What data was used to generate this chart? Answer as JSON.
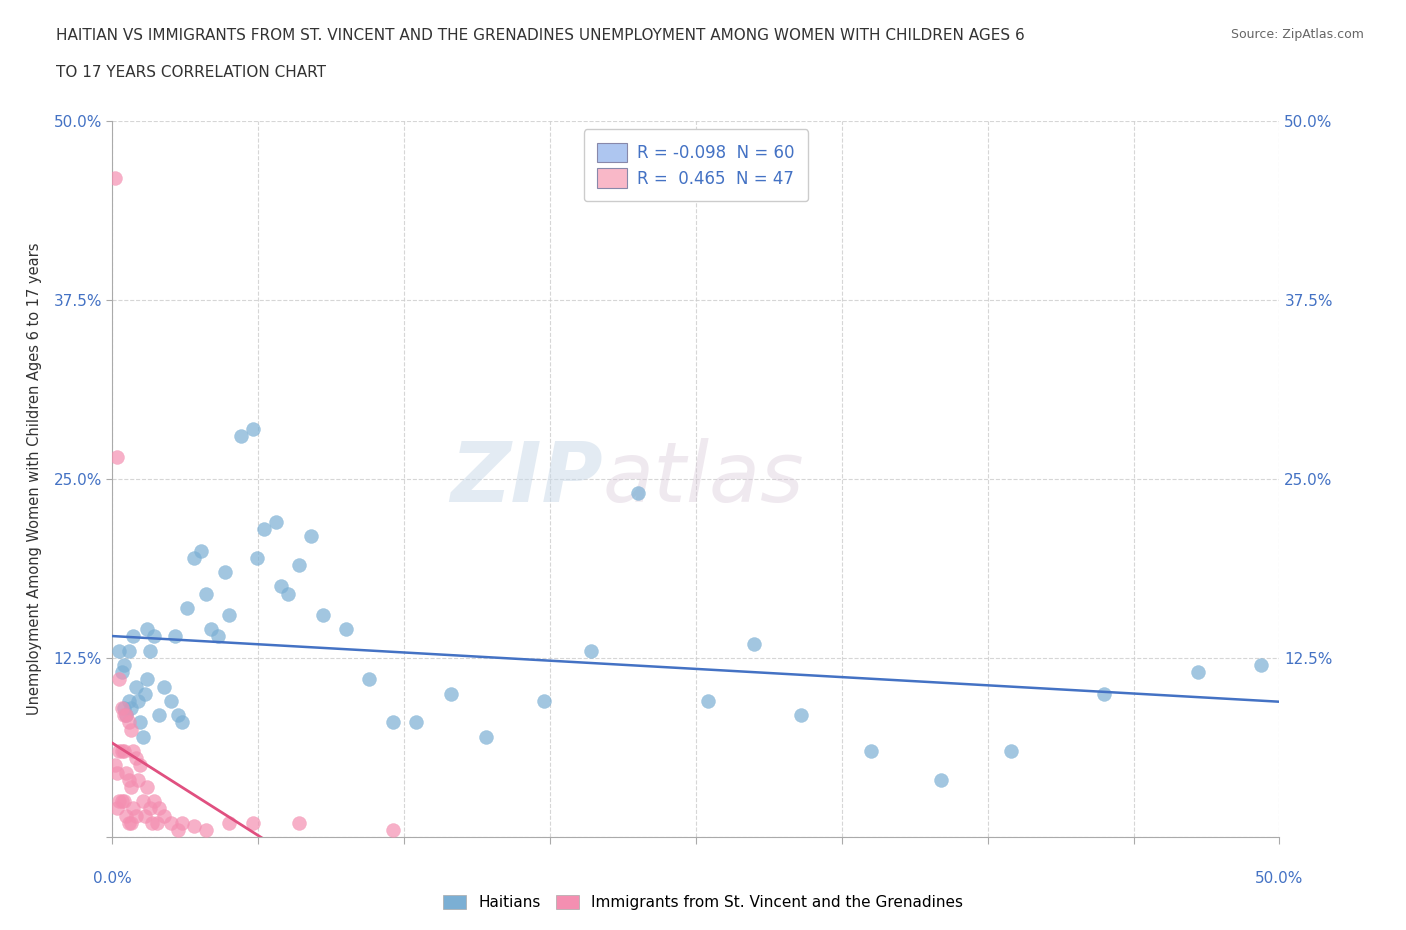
{
  "title_line1": "HAITIAN VS IMMIGRANTS FROM ST. VINCENT AND THE GRENADINES UNEMPLOYMENT AMONG WOMEN WITH CHILDREN AGES 6",
  "title_line2": "TO 17 YEARS CORRELATION CHART",
  "source": "Source: ZipAtlas.com",
  "ylabel": "Unemployment Among Women with Children Ages 6 to 17 years",
  "xlim": [
    0,
    0.5
  ],
  "ylim": [
    0,
    0.5
  ],
  "yticks": [
    0.0,
    0.125,
    0.25,
    0.375,
    0.5
  ],
  "ytick_labels": [
    "",
    "12.5%",
    "25.0%",
    "37.5%",
    "50.0%"
  ],
  "xticks": [
    0.0,
    0.0625,
    0.125,
    0.1875,
    0.25,
    0.3125,
    0.375,
    0.4375,
    0.5
  ],
  "legend_label_1": "R = -0.098  N = 60",
  "legend_label_2": "R =  0.465  N = 47",
  "legend_color_1": "#aec6f0",
  "legend_color_2": "#f9b8c8",
  "haitian_color": "#7bafd4",
  "svg_color": "#f48fb1",
  "haitian_line_color": "#4472c4",
  "svg_line_color": "#e05080",
  "background_color": "#ffffff",
  "grid_color": "#cccccc",
  "haitian_x": [
    0.003,
    0.004,
    0.005,
    0.005,
    0.006,
    0.007,
    0.007,
    0.008,
    0.009,
    0.01,
    0.011,
    0.012,
    0.013,
    0.014,
    0.015,
    0.015,
    0.016,
    0.018,
    0.02,
    0.022,
    0.025,
    0.027,
    0.028,
    0.03,
    0.032,
    0.035,
    0.038,
    0.04,
    0.042,
    0.045,
    0.048,
    0.05,
    0.055,
    0.06,
    0.062,
    0.065,
    0.07,
    0.072,
    0.075,
    0.08,
    0.085,
    0.09,
    0.1,
    0.11,
    0.12,
    0.13,
    0.145,
    0.16,
    0.185,
    0.205,
    0.225,
    0.255,
    0.275,
    0.295,
    0.325,
    0.355,
    0.385,
    0.425,
    0.465,
    0.492
  ],
  "haitian_y": [
    0.13,
    0.115,
    0.09,
    0.12,
    0.085,
    0.13,
    0.095,
    0.09,
    0.14,
    0.105,
    0.095,
    0.08,
    0.07,
    0.1,
    0.11,
    0.145,
    0.13,
    0.14,
    0.085,
    0.105,
    0.095,
    0.14,
    0.085,
    0.08,
    0.16,
    0.195,
    0.2,
    0.17,
    0.145,
    0.14,
    0.185,
    0.155,
    0.28,
    0.285,
    0.195,
    0.215,
    0.22,
    0.175,
    0.17,
    0.19,
    0.21,
    0.155,
    0.145,
    0.11,
    0.08,
    0.08,
    0.1,
    0.07,
    0.095,
    0.13,
    0.24,
    0.095,
    0.135,
    0.085,
    0.06,
    0.04,
    0.06,
    0.1,
    0.115,
    0.12
  ],
  "svg_x": [
    0.001,
    0.001,
    0.002,
    0.002,
    0.002,
    0.003,
    0.003,
    0.003,
    0.004,
    0.004,
    0.004,
    0.005,
    0.005,
    0.005,
    0.006,
    0.006,
    0.006,
    0.007,
    0.007,
    0.007,
    0.008,
    0.008,
    0.008,
    0.009,
    0.009,
    0.01,
    0.01,
    0.011,
    0.012,
    0.013,
    0.014,
    0.015,
    0.016,
    0.017,
    0.018,
    0.019,
    0.02,
    0.022,
    0.025,
    0.028,
    0.03,
    0.035,
    0.04,
    0.05,
    0.06,
    0.08,
    0.12
  ],
  "svg_y": [
    0.46,
    0.05,
    0.265,
    0.045,
    0.02,
    0.11,
    0.06,
    0.025,
    0.09,
    0.06,
    0.025,
    0.085,
    0.06,
    0.025,
    0.085,
    0.045,
    0.015,
    0.08,
    0.04,
    0.01,
    0.075,
    0.035,
    0.01,
    0.06,
    0.02,
    0.055,
    0.015,
    0.04,
    0.05,
    0.025,
    0.015,
    0.035,
    0.02,
    0.01,
    0.025,
    0.01,
    0.02,
    0.015,
    0.01,
    0.005,
    0.01,
    0.008,
    0.005,
    0.01,
    0.01,
    0.01,
    0.005
  ]
}
